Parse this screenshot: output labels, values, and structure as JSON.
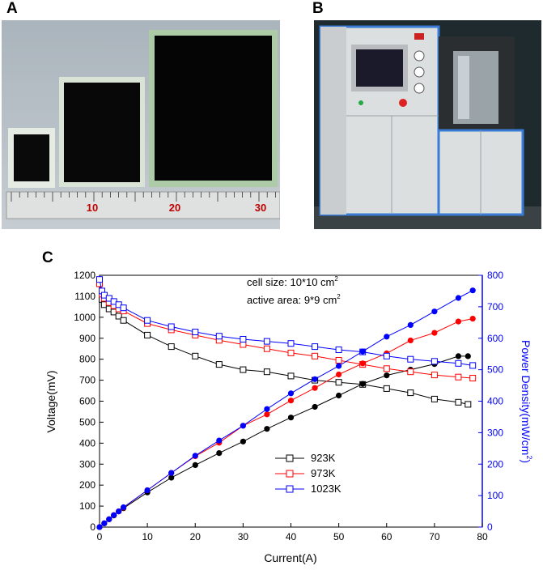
{
  "panels": {
    "a": "A",
    "b": "B",
    "c": "C"
  },
  "ruler": {
    "labels": [
      "10",
      "20",
      "30"
    ]
  },
  "chart_data": {
    "type": "line",
    "xlabel": "Current(A)",
    "ylabel_left": "Voltage(mV)",
    "ylabel_right_main": "Power Density(mW/cm",
    "ylabel_right_sup": "2",
    "ylabel_right_end": ")",
    "xlim": [
      0,
      80
    ],
    "ylim_left": [
      0,
      1200
    ],
    "ylim_right": [
      0,
      800
    ],
    "xticks": [
      0,
      10,
      20,
      30,
      40,
      50,
      60,
      70,
      80
    ],
    "yticks_left": [
      0,
      100,
      200,
      300,
      400,
      500,
      600,
      700,
      800,
      900,
      1000,
      1100,
      1200
    ],
    "yticks_right": [
      0,
      100,
      200,
      300,
      400,
      500,
      600,
      700,
      800
    ],
    "annotations": {
      "cell_size": "cell size: 10*10 cm",
      "cell_size_sup": "2",
      "active_area": "active area: 9*9 cm",
      "active_area_sup": "2"
    },
    "legend_position": "lower-middle",
    "series": [
      {
        "name": "923K",
        "color": "#000000",
        "voltage_x": [
          0,
          0.5,
          1,
          2,
          3,
          4,
          5,
          10,
          15,
          20,
          25,
          30,
          35,
          40,
          45,
          50,
          55,
          60,
          65,
          70,
          75,
          77
        ],
        "voltage": [
          1160,
          1085,
          1060,
          1040,
          1025,
          1005,
          985,
          915,
          860,
          815,
          775,
          750,
          740,
          720,
          700,
          690,
          680,
          660,
          640,
          610,
          595,
          585
        ],
        "power_x": [
          0,
          1,
          2,
          3,
          4,
          5,
          10,
          15,
          20,
          25,
          30,
          35,
          40,
          45,
          50,
          55,
          60,
          65,
          70,
          75,
          77
        ],
        "power": [
          0,
          12,
          25,
          37,
          50,
          60,
          110,
          157,
          197,
          235,
          272,
          312,
          348,
          382,
          418,
          455,
          482,
          500,
          518,
          543,
          543
        ]
      },
      {
        "name": "973K",
        "color": "#ff0000",
        "voltage_x": [
          0,
          0.5,
          1,
          2,
          3,
          4,
          5,
          10,
          15,
          20,
          25,
          30,
          35,
          40,
          45,
          50,
          55,
          60,
          65,
          70,
          75,
          78
        ],
        "voltage": [
          1160,
          1110,
          1090,
          1070,
          1055,
          1040,
          1030,
          970,
          940,
          915,
          890,
          870,
          850,
          830,
          815,
          795,
          775,
          755,
          740,
          725,
          715,
          710
        ],
        "power_x": [
          0,
          1,
          2,
          3,
          4,
          5,
          10,
          15,
          20,
          25,
          30,
          35,
          40,
          45,
          50,
          55,
          60,
          65,
          70,
          75,
          78
        ],
        "power": [
          0,
          12,
          25,
          38,
          50,
          62,
          117,
          172,
          225,
          268,
          322,
          358,
          402,
          442,
          485,
          520,
          552,
          593,
          617,
          653,
          662
        ]
      },
      {
        "name": "1023K",
        "color": "#0000ff",
        "voltage_x": [
          0,
          0.5,
          1,
          2,
          3,
          4,
          5,
          10,
          15,
          20,
          25,
          30,
          35,
          40,
          45,
          50,
          55,
          60,
          65,
          70,
          75,
          78
        ],
        "voltage": [
          1180,
          1125,
          1105,
          1090,
          1075,
          1060,
          1045,
          985,
          955,
          930,
          910,
          895,
          885,
          875,
          860,
          845,
          835,
          815,
          800,
          790,
          780,
          770
        ],
        "power_x": [
          0,
          1,
          2,
          3,
          4,
          5,
          10,
          15,
          20,
          25,
          30,
          35,
          40,
          45,
          50,
          55,
          60,
          65,
          70,
          75,
          78
        ],
        "power": [
          0,
          12,
          25,
          38,
          50,
          63,
          117,
          172,
          227,
          275,
          322,
          375,
          425,
          470,
          512,
          558,
          605,
          642,
          685,
          728,
          752
        ]
      }
    ]
  }
}
